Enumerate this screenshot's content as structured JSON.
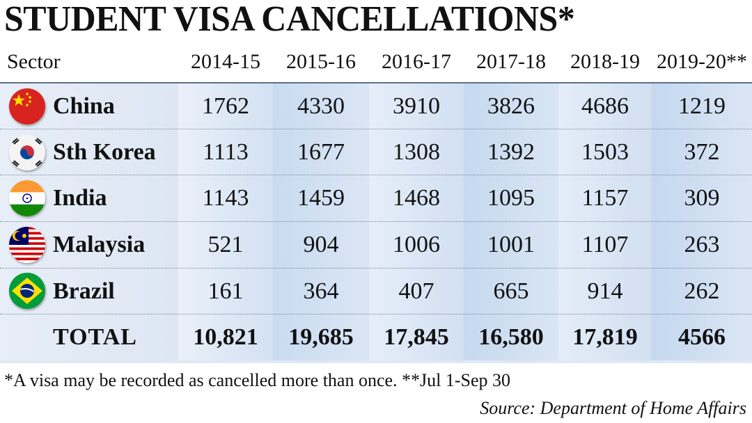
{
  "title": "STUDENT VISA CANCELLATIONS*",
  "header": {
    "sector_label": "Sector",
    "years": [
      "2014-15",
      "2015-16",
      "2016-17",
      "2017-18",
      "2018-19",
      "2019-20**"
    ]
  },
  "rows": [
    {
      "country": "China",
      "flag_icon": "china-flag-icon",
      "values": [
        "1762",
        "4330",
        "3910",
        "3826",
        "4686",
        "1219"
      ]
    },
    {
      "country": "Sth Korea",
      "flag_icon": "south-korea-flag-icon",
      "values": [
        "1113",
        "1677",
        "1308",
        "1392",
        "1503",
        "372"
      ]
    },
    {
      "country": "India",
      "flag_icon": "india-flag-icon",
      "values": [
        "1143",
        "1459",
        "1468",
        "1095",
        "1157",
        "309"
      ]
    },
    {
      "country": "Malaysia",
      "flag_icon": "malaysia-flag-icon",
      "values": [
        "521",
        "904",
        "1006",
        "1001",
        "1107",
        "263"
      ]
    },
    {
      "country": "Brazil",
      "flag_icon": "brazil-flag-icon",
      "values": [
        "161",
        "364",
        "407",
        "665",
        "914",
        "262"
      ]
    }
  ],
  "total": {
    "label": "TOTAL",
    "values": [
      "10,821",
      "19,685",
      "17,845",
      "16,580",
      "17,819",
      "4566"
    ]
  },
  "footnote": "*A visa may be recorded as cancelled more than once.  **Jul 1-Sep 30",
  "source": "Source: Department of Home Affairs",
  "colors": {
    "table_blue": "#dfe8f5",
    "column_shade": "#c9dbf0",
    "text": "#111111"
  },
  "chart_data": {
    "type": "table",
    "title": "STUDENT VISA CANCELLATIONS*",
    "columns": [
      "Sector",
      "2014-15",
      "2015-16",
      "2016-17",
      "2017-18",
      "2018-19",
      "2019-20**"
    ],
    "categories": [
      "2014-15",
      "2015-16",
      "2016-17",
      "2017-18",
      "2018-19",
      "2019-20**"
    ],
    "series": [
      {
        "name": "China",
        "values": [
          1762,
          4330,
          3910,
          3826,
          4686,
          1219
        ]
      },
      {
        "name": "Sth Korea",
        "values": [
          1113,
          1677,
          1308,
          1392,
          1503,
          372
        ]
      },
      {
        "name": "India",
        "values": [
          1143,
          1459,
          1468,
          1095,
          1157,
          309
        ]
      },
      {
        "name": "Malaysia",
        "values": [
          521,
          904,
          1006,
          1001,
          1107,
          263
        ]
      },
      {
        "name": "Brazil",
        "values": [
          161,
          364,
          407,
          665,
          914,
          262
        ]
      },
      {
        "name": "TOTAL",
        "values": [
          10821,
          19685,
          17845,
          16580,
          17819,
          4566
        ]
      }
    ]
  }
}
